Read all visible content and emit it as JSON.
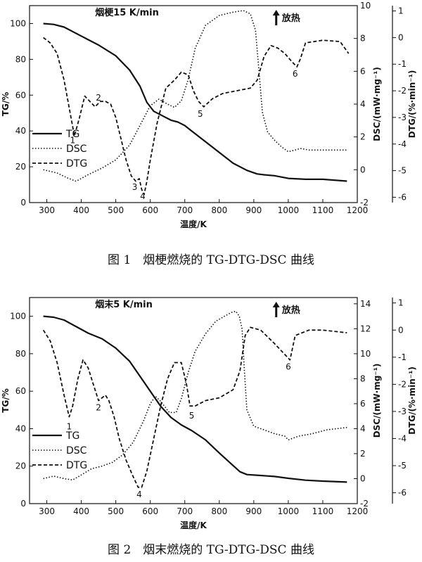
{
  "chart_data": [
    {
      "type": "line",
      "title": "烟梗15 K/min",
      "annotation": "放热",
      "caption": "图 1　烟梗燃烧的 TG-DTG-DSC 曲线",
      "xlabel": "温度/K",
      "ylabel_left": "TG/%",
      "ylabel_right1": "DSC/(mW·mg⁻¹)",
      "ylabel_right2": "DTG/(%·min⁻¹)",
      "xlim": [
        250,
        1200
      ],
      "xticks": [
        "300",
        "400",
        "500",
        "600",
        "700",
        "800",
        "900",
        "1000",
        "1100",
        "1200"
      ],
      "tg_ylim": [
        0,
        110
      ],
      "tg_ticks": [
        "0",
        "20",
        "40",
        "60",
        "80",
        "100"
      ],
      "dsc_ylim": [
        -2,
        10
      ],
      "dsc_ticks": [
        "-2",
        "0",
        "2",
        "4",
        "6",
        "8",
        "10"
      ],
      "dtg_ylim": [
        -6.2,
        1.2
      ],
      "dtg_ticks": [
        "-6",
        "-5",
        "-4",
        "-3",
        "-2",
        "-1",
        "0",
        "1"
      ],
      "legend": [
        "TG",
        "DSC",
        "DTG"
      ],
      "peak_labels": [
        {
          "text": "1",
          "x": 375,
          "dtg": -3.6
        },
        {
          "text": "2",
          "x": 450,
          "dtg": -2.0
        },
        {
          "text": "3",
          "x": 555,
          "dtg": -5.35
        },
        {
          "text": "4",
          "x": 578,
          "dtg": -5.7
        },
        {
          "text": "5",
          "x": 745,
          "dtg": -2.6
        },
        {
          "text": "6",
          "x": 1020,
          "dtg": -1.1
        }
      ],
      "series": [
        {
          "name": "TG",
          "axis": "tg",
          "x": [
            290,
            320,
            350,
            400,
            450,
            500,
            540,
            570,
            590,
            610,
            640,
            660,
            680,
            700,
            720,
            760,
            800,
            840,
            880,
            910,
            930,
            960,
            1000,
            1050,
            1100,
            1170
          ],
          "y": [
            100,
            99.5,
            98,
            93,
            88,
            82,
            74,
            65,
            56,
            51,
            48,
            46,
            45,
            43,
            40,
            34,
            28,
            22,
            18,
            16,
            15.5,
            15,
            13.5,
            13,
            13,
            12
          ]
        },
        {
          "name": "DSC",
          "axis": "dsc",
          "x": [
            290,
            330,
            360,
            385,
            420,
            460,
            500,
            540,
            570,
            600,
            625,
            650,
            670,
            690,
            710,
            730,
            760,
            800,
            840,
            870,
            890,
            905,
            915,
            925,
            940,
            960,
            980,
            1000,
            1020,
            1035,
            1060,
            1100,
            1170
          ],
          "y": [
            0,
            -0.2,
            -0.5,
            -0.7,
            -0.3,
            0.1,
            0.6,
            1.5,
            2.7,
            3.9,
            4.3,
            4.0,
            3.8,
            4.2,
            5.5,
            7.4,
            8.8,
            9.4,
            9.6,
            9.7,
            9.5,
            8.5,
            6.0,
            3.5,
            2.3,
            1.8,
            1.4,
            1.1,
            1.2,
            1.3,
            1.2,
            1.2,
            1.2
          ]
        },
        {
          "name": "DTG",
          "axis": "dtg",
          "x": [
            290,
            310,
            330,
            350,
            370,
            380,
            395,
            410,
            425,
            440,
            455,
            470,
            485,
            500,
            515,
            530,
            545,
            558,
            568,
            575,
            582,
            590,
            600,
            620,
            645,
            670,
            690,
            710,
            725,
            740,
            755,
            780,
            810,
            850,
            890,
            910,
            930,
            950,
            970,
            990,
            1010,
            1025,
            1035,
            1050,
            1100,
            1150,
            1175
          ],
          "y": [
            0,
            -0.2,
            -0.6,
            -1.6,
            -3.0,
            -3.7,
            -3.0,
            -2.2,
            -2.4,
            -2.6,
            -2.4,
            -2.4,
            -2.5,
            -3.0,
            -3.8,
            -4.6,
            -5.2,
            -5.4,
            -5.3,
            -5.7,
            -5.9,
            -5.4,
            -4.6,
            -3.2,
            -1.9,
            -1.6,
            -1.3,
            -1.4,
            -2.0,
            -2.4,
            -2.6,
            -2.3,
            -2.1,
            -2.0,
            -1.9,
            -1.6,
            -0.7,
            -0.3,
            -0.4,
            -0.6,
            -0.9,
            -1.1,
            -0.8,
            -0.2,
            -0.1,
            -0.15,
            -0.6
          ]
        }
      ]
    },
    {
      "type": "line",
      "title": "烟末5 K/min",
      "annotation": "放热",
      "caption": "图 2　烟末燃烧的 TG-DTG-DSC 曲线",
      "xlabel": "温度/K",
      "ylabel_left": "TG/%",
      "ylabel_right1": "DSC/(mW·mg⁻¹)",
      "ylabel_right2": "DTG/(%·min⁻¹)",
      "xlim": [
        250,
        1200
      ],
      "xticks": [
        "300",
        "400",
        "500",
        "600",
        "700",
        "800",
        "900",
        "1000",
        "1100",
        "1200"
      ],
      "tg_ylim": [
        0,
        110
      ],
      "tg_ticks": [
        "0",
        "20",
        "40",
        "60",
        "80",
        "100"
      ],
      "dsc_ylim": [
        -2,
        14.5
      ],
      "dsc_ticks": [
        "-2",
        "0",
        "2",
        "4",
        "6",
        "8",
        "10",
        "12",
        "14"
      ],
      "dtg_ylim": [
        -6.4,
        1.2
      ],
      "dtg_ticks": [
        "-6",
        "-5",
        "-4",
        "-3",
        "-2",
        "-1",
        "0",
        "1"
      ],
      "legend": [
        "TG",
        "DSC",
        "DTG"
      ],
      "peak_labels": [
        {
          "text": "1",
          "x": 365,
          "dtg": -3.3
        },
        {
          "text": "2",
          "x": 450,
          "dtg": -2.6
        },
        {
          "text": "4",
          "x": 568,
          "dtg": -5.8
        },
        {
          "text": "5",
          "x": 720,
          "dtg": -2.9
        },
        {
          "text": "6",
          "x": 1000,
          "dtg": -1.1
        }
      ],
      "series": [
        {
          "name": "TG",
          "axis": "tg",
          "x": [
            290,
            320,
            350,
            380,
            420,
            460,
            500,
            540,
            570,
            600,
            630,
            660,
            690,
            720,
            760,
            800,
            830,
            860,
            880,
            920,
            960,
            1000,
            1050,
            1100,
            1170
          ],
          "y": [
            100,
            99.5,
            98,
            95,
            91,
            88,
            83,
            76,
            68,
            60,
            52,
            46,
            42,
            39,
            34,
            27,
            22,
            17,
            15.5,
            15,
            14.5,
            13.5,
            12.5,
            12,
            11.5
          ]
        },
        {
          "name": "DSC",
          "axis": "dsc",
          "x": [
            290,
            320,
            350,
            375,
            400,
            430,
            460,
            490,
            520,
            550,
            580,
            600,
            615,
            630,
            655,
            675,
            690,
            710,
            730,
            760,
            790,
            815,
            835,
            848,
            858,
            866,
            872,
            880,
            900,
            930,
            960,
            990,
            1000,
            1030,
            1070,
            1110,
            1170
          ],
          "y": [
            0.0,
            0.2,
            0.0,
            -0.1,
            0.3,
            0.8,
            1.0,
            1.3,
            1.9,
            2.9,
            4.6,
            6.0,
            6.6,
            6.2,
            5.3,
            5.3,
            6.4,
            8.5,
            10.2,
            11.6,
            12.6,
            13.0,
            13.3,
            13.4,
            13.0,
            12.0,
            9.0,
            5.5,
            4.2,
            3.9,
            3.6,
            3.4,
            3.1,
            3.4,
            3.6,
            3.9,
            4.1
          ]
        },
        {
          "name": "DTG",
          "axis": "dtg",
          "x": [
            290,
            310,
            330,
            350,
            365,
            375,
            390,
            405,
            420,
            435,
            450,
            470,
            480,
            495,
            510,
            530,
            550,
            565,
            575,
            590,
            610,
            630,
            650,
            670,
            690,
            705,
            715,
            730,
            760,
            800,
            840,
            860,
            875,
            890,
            920,
            960,
            990,
            1005,
            1020,
            1060,
            1100,
            1170
          ],
          "y": [
            0.0,
            -0.4,
            -1.2,
            -2.4,
            -3.2,
            -2.8,
            -1.8,
            -1.1,
            -1.4,
            -2.0,
            -2.6,
            -2.4,
            -2.6,
            -3.2,
            -4.0,
            -4.8,
            -5.4,
            -5.8,
            -5.8,
            -5.2,
            -4.0,
            -2.8,
            -1.8,
            -1.2,
            -1.2,
            -2.0,
            -2.8,
            -2.8,
            -2.6,
            -2.5,
            -2.2,
            -1.5,
            -0.2,
            0.1,
            0.0,
            -0.5,
            -0.9,
            -1.1,
            -0.2,
            0.0,
            0.0,
            -0.1
          ]
        }
      ]
    }
  ]
}
